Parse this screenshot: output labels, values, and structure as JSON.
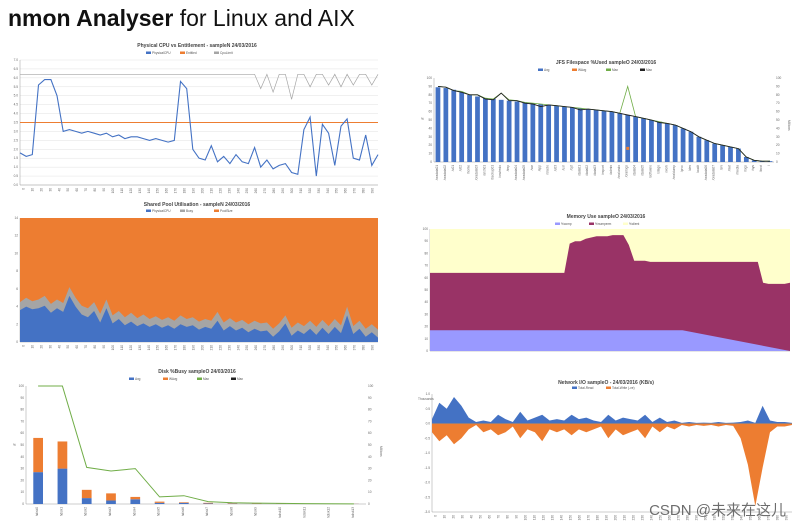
{
  "page": {
    "title_bold": "nmon Analyser",
    "title_rest": " for Linux and AIX",
    "watermark": "CSDN @未来在这儿"
  },
  "colors": {
    "blue": "#4472c4",
    "orange": "#ed7d31",
    "gray": "#a5a5a5",
    "green": "#70ad47",
    "black": "#222222",
    "lightyellow": "#ffffcc",
    "maroon": "#993366",
    "lavender": "#9999ff",
    "grid": "#d9d9d9"
  },
  "chart_data": [
    {
      "id": "cpu",
      "type": "line",
      "title": "Physical CPU vs Entitlement - sampleN 24/03/2016",
      "legend": [
        "PhysicalCPU",
        "Entitled",
        "CpuLimit"
      ],
      "ylim": [
        0,
        7
      ],
      "yticks": [
        "0.0",
        "0.5",
        "1.0",
        "1.5",
        "2.0",
        "2.5",
        "3.0",
        "3.5",
        "4.0",
        "4.5",
        "5.0",
        "5.5",
        "6.0",
        "6.5",
        "7.0"
      ],
      "entitled": 3.5,
      "physical": [
        1.8,
        1.6,
        1.7,
        5.6,
        5.9,
        5.9,
        5.0,
        3.0,
        3.1,
        3.0,
        2.9,
        3.0,
        2.9,
        2.8,
        2.9,
        2.7,
        2.8,
        2.6,
        2.7,
        2.7,
        2.6,
        2.5,
        2.6,
        2.5,
        2.4,
        2.5,
        5.8,
        5.4,
        2.0,
        1.5,
        1.4,
        2.2,
        1.3,
        1.6,
        1.2,
        1.7,
        1.3,
        1.2,
        2.1,
        1.0,
        1.4,
        0.9,
        1.1,
        1.2,
        0.7,
        0.6,
        3.1,
        3.8,
        0.5,
        3.4,
        2.9,
        1.1,
        3.3,
        3.7,
        1.5,
        1.4,
        2.8,
        1.1,
        1.7
      ],
      "limit": [
        6.2,
        6.2,
        6.2,
        6.2,
        6.2,
        6.2,
        6.2,
        6.2,
        6.2,
        6.2,
        6.2,
        6.2,
        6.2,
        6.2,
        6.2,
        6.2,
        6.2,
        6.2,
        6.2,
        6.2,
        6.2,
        6.2,
        6.2,
        6.2,
        6.2,
        6.2,
        6.2,
        6.2,
        6.2,
        6.2,
        6.2,
        6.2,
        6.2,
        6.2,
        6.2,
        6.2,
        6.2,
        6.2,
        6.2,
        5.4,
        6.2,
        5.2,
        6.2,
        6.2,
        4.8,
        6.2,
        6.2,
        5.5,
        6.2,
        6.2,
        5.6,
        6.2,
        5.5,
        6.2,
        5.6,
        6.2,
        6.2,
        5.6,
        6.2
      ]
    },
    {
      "id": "jfs",
      "type": "bar",
      "title": "JFS Filespace %Used sampleO 24/03/2016",
      "legend": [
        "Avg",
        "WAvg",
        "Max",
        "Max"
      ],
      "ylabel": "%",
      "ylabel2": "Millions",
      "ylim": [
        0,
        100
      ],
      "yticks": [
        "0",
        "10",
        "20",
        "30",
        "40",
        "50",
        "60",
        "70",
        "80",
        "90",
        "100"
      ],
      "avg": [
        89,
        88,
        86,
        83,
        80,
        78,
        76,
        75,
        74,
        73,
        72,
        71,
        70,
        69,
        68,
        67,
        66,
        65,
        64,
        63,
        62,
        61,
        60,
        58,
        56,
        54,
        52,
        50,
        48,
        46,
        44,
        40,
        36,
        30,
        26,
        22,
        20,
        18,
        16,
        6,
        2,
        1,
        1
      ],
      "line": [
        90,
        89,
        85,
        83,
        80,
        80,
        75,
        74,
        82,
        73,
        73,
        70,
        69,
        66,
        68,
        67,
        66,
        65,
        62,
        63,
        62,
        61,
        60,
        58,
        56,
        54,
        52,
        50,
        47,
        46,
        44,
        40,
        36,
        30,
        26,
        22,
        20,
        18,
        16,
        6,
        2,
        1,
        1
      ],
      "max": [
        90,
        89,
        85,
        84,
        80,
        80,
        76,
        75,
        82,
        74,
        73,
        71,
        70,
        69,
        68,
        67,
        66,
        65,
        64,
        63,
        62,
        61,
        60,
        58,
        90,
        54,
        52,
        50,
        48,
        46,
        44,
        40,
        36,
        30,
        26,
        22,
        20,
        18,
        16,
        6,
        2,
        1,
        1
      ],
      "categories": [
        "/oradata01",
        "/oradata02",
        "/u01",
        "/u02",
        "/home",
        "/oradata03",
        "/arch01",
        "/backup01",
        "/ora/redo",
        "/tmp",
        "/oradata04",
        "/oradata05",
        "/var",
        "/app",
        "/oracle",
        "/u03",
        "/usr",
        "/opt",
        "/data01",
        "/data02",
        "/data03",
        "/export",
        "/admin",
        "/ora/undo",
        "/ora/logs",
        "/data04",
        "/data05",
        "/software",
        "/stage",
        "/work",
        "/ora/dump",
        "/proc",
        "/dev",
        "/audit",
        "/oradata06",
        "/oradata07",
        "/srv",
        "/mnt",
        "/media",
        "/logs",
        "/sys",
        "/boot",
        "/"
      ]
    },
    {
      "id": "pool",
      "type": "area",
      "title": "Shared Pool Utilisation - sampleN 24/03/2016",
      "legend": [
        "PhysicalCPU",
        "Busy",
        "PoolSize"
      ],
      "ylim": [
        0,
        14
      ],
      "yticks": [
        "0",
        "2",
        "4",
        "6",
        "8",
        "10",
        "12",
        "14"
      ],
      "poolsize": 14,
      "busy": [
        4.5,
        5.0,
        4.6,
        4.8,
        5.2,
        4.3,
        4.8,
        4.4,
        6.2,
        5.0,
        4.1,
        3.8,
        4.5,
        3.2,
        4.8,
        3.0,
        3.5,
        2.8,
        3.3,
        2.7,
        3.1,
        2.6,
        2.9,
        2.5,
        2.8,
        2.4,
        3.0,
        2.6,
        2.8,
        2.3,
        2.6,
        2.4,
        3.4,
        2.2,
        2.7,
        2.2,
        2.5,
        2.0,
        2.4,
        2.1,
        2.2,
        1.5,
        2.1,
        3.0,
        1.6,
        2.2,
        1.8,
        2.4,
        1.7,
        2.5,
        1.8,
        2.6,
        1.9,
        4.0,
        1.8,
        2.4,
        1.5,
        2.0,
        1.4
      ],
      "physical": [
        3.6,
        4.0,
        3.7,
        3.8,
        4.1,
        3.3,
        3.8,
        3.4,
        5.2,
        4.0,
        3.1,
        2.8,
        3.5,
        2.2,
        3.8,
        2.1,
        2.6,
        1.9,
        2.3,
        1.8,
        2.1,
        1.7,
        2.0,
        1.6,
        1.9,
        1.5,
        2.0,
        1.7,
        1.9,
        1.4,
        1.7,
        1.5,
        2.4,
        1.3,
        1.8,
        1.3,
        1.6,
        1.1,
        1.5,
        1.2,
        1.3,
        0.6,
        1.2,
        2.1,
        0.7,
        1.3,
        0.9,
        1.5,
        0.8,
        1.6,
        0.9,
        1.7,
        1.0,
        3.0,
        0.9,
        1.5,
        0.6,
        1.1,
        0.5
      ]
    },
    {
      "id": "mem",
      "type": "area",
      "title": "Memory Use sampleO 24/03/2016",
      "legend": [
        "%comp",
        "%numperm",
        "%client"
      ],
      "ylim": [
        0,
        100
      ],
      "yticks": [
        "0",
        "10",
        "20",
        "30",
        "40",
        "50",
        "60",
        "70",
        "80",
        "90",
        "100"
      ],
      "comp": [
        17,
        17,
        17,
        17,
        17,
        17,
        17,
        17,
        17,
        17,
        17,
        17,
        17,
        17,
        17,
        17,
        17,
        17,
        17,
        17,
        17,
        17,
        17,
        17,
        17,
        17,
        17,
        17,
        17,
        17,
        17,
        17,
        17,
        17,
        17,
        17,
        17,
        17,
        17,
        17,
        17,
        17,
        17,
        17,
        17,
        17,
        17,
        17
      ],
      "total": [
        64,
        64,
        64,
        64,
        64,
        64,
        64,
        64,
        64,
        64,
        64,
        64,
        64,
        64,
        64,
        64,
        64,
        64,
        64,
        64,
        64,
        64,
        64,
        64,
        64,
        64,
        88,
        90,
        90,
        92,
        93,
        94,
        94,
        94,
        95,
        95,
        95,
        87,
        74,
        74,
        74,
        73,
        73,
        73,
        73,
        73,
        73,
        73,
        73,
        73,
        73,
        73,
        73,
        73,
        73,
        73,
        73,
        73,
        73,
        73,
        73,
        73,
        56,
        55,
        55,
        55,
        55,
        56
      ],
      "top": [
        100,
        100,
        100,
        100,
        100,
        100,
        100,
        100,
        100,
        100,
        100,
        100,
        100,
        100,
        100,
        100,
        100,
        100,
        100,
        100,
        100,
        100,
        100,
        100,
        100,
        100,
        100,
        100,
        100,
        100,
        100,
        100,
        100,
        100,
        100,
        100,
        100,
        100,
        100,
        100,
        100,
        100,
        100,
        100,
        100,
        100,
        100,
        100,
        100,
        100,
        100,
        100,
        100,
        100,
        100,
        100,
        100,
        100,
        100,
        100,
        100,
        100,
        100,
        100,
        100,
        100,
        100,
        100
      ]
    },
    {
      "id": "disk",
      "type": "bar",
      "title": "Disk %Busy sampleO 24/03/2016",
      "legend": [
        "Avg",
        "WAvg",
        "Max",
        "Max"
      ],
      "ylabel": "%",
      "ylabel2": "Millions",
      "ylim": [
        0,
        100
      ],
      "yticks": [
        "0",
        "10",
        "20",
        "30",
        "40",
        "50",
        "60",
        "70",
        "80",
        "90",
        "100"
      ],
      "categories": [
        "hdisk0",
        "hdisk1",
        "hdisk2",
        "hdisk3",
        "hdisk4",
        "hdisk5",
        "hdisk6",
        "hdisk7",
        "hdisk8",
        "hdisk9",
        "hdisk10",
        "hdisk11",
        "hdisk12",
        "hdisk13"
      ],
      "avg": [
        27,
        30,
        5,
        3,
        4,
        1,
        1,
        0.5,
        0.3,
        0.2,
        0.2,
        0.1,
        0.1,
        0.1
      ],
      "wavg": [
        29,
        23,
        7,
        6,
        2,
        1,
        0.5,
        0.5,
        0.4,
        0.3,
        0.2,
        0.2,
        0.1,
        0.1
      ],
      "max": [
        100,
        100,
        31,
        28,
        30,
        6,
        7,
        2,
        1,
        0.8,
        0.5,
        0.3,
        0.2,
        0.1
      ]
    },
    {
      "id": "net",
      "type": "area",
      "title": "Network I/O sampleO - 24/03/2016 (KB/s)",
      "legend": [
        "Total-Read",
        "Total-Write (-ve)"
      ],
      "ylabel": "Thousands",
      "ylim": [
        -3,
        1
      ],
      "yticks": [
        "-3.0",
        "-2.5",
        "-2.0",
        "-1.5",
        "-1.0",
        "-0.5",
        "0.0",
        "0.5",
        "1.0"
      ],
      "read": [
        0.15,
        0.7,
        0.5,
        0.9,
        0.6,
        0.2,
        0.05,
        0.1,
        0.05,
        0.3,
        0.15,
        0.05,
        0.4,
        0.1,
        0.2,
        0.3,
        0.1,
        0.15,
        0.1,
        0.3,
        0.15,
        0.2,
        0.1,
        0.05,
        0.3,
        0.1,
        0.2,
        0.15,
        0.1,
        0.3,
        0.05,
        0.2,
        0.05,
        0.1,
        0.02,
        0.05,
        0.02,
        0.03,
        0.02,
        0.05,
        0.02,
        0.03,
        0.05,
        0.1,
        0.02,
        0.6,
        0.1,
        0.05,
        0.05,
        0.02
      ],
      "write": [
        -0.3,
        -0.6,
        -0.4,
        -0.7,
        -0.5,
        -0.2,
        -0.05,
        -0.3,
        -0.2,
        -0.4,
        -0.3,
        -0.1,
        -0.5,
        -0.2,
        -0.3,
        -0.6,
        -0.2,
        -0.3,
        -0.2,
        -0.4,
        -0.2,
        -0.3,
        -0.2,
        -0.1,
        -0.5,
        -0.2,
        -0.4,
        -0.3,
        -0.2,
        -0.5,
        -0.1,
        -0.3,
        -0.1,
        -0.2,
        -0.05,
        -0.1,
        -0.05,
        -0.08,
        -0.05,
        -0.1,
        -0.05,
        -0.08,
        -0.5,
        -1.4,
        -2.8,
        -1.5,
        -0.3,
        -0.1,
        -0.1,
        -0.05
      ]
    }
  ]
}
